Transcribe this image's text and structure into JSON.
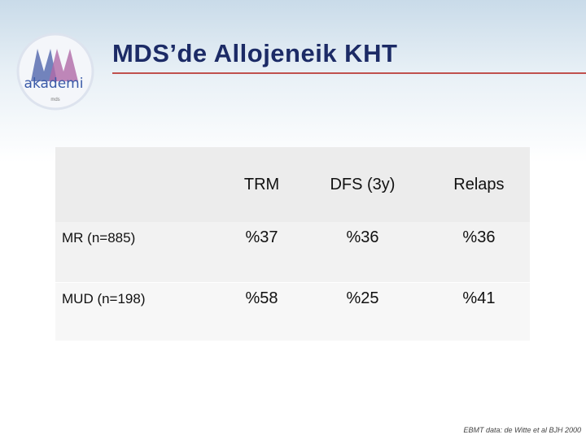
{
  "header": {
    "title": "MDS’de Allojeneik KHT"
  },
  "logo": {
    "text": "akademi",
    "subtext": "mds"
  },
  "table": {
    "columns": [
      "TRM",
      "DFS (3y)",
      "Relaps"
    ],
    "rows": [
      {
        "label": "MR (n=885)",
        "cells": [
          "%37",
          "%36",
          "%36"
        ]
      },
      {
        "label": "MUD (n=198)",
        "cells": [
          "%58",
          "%25",
          "%41"
        ]
      }
    ]
  },
  "footer": {
    "source": "EBMT data: de Witte et al BJH 2000"
  }
}
